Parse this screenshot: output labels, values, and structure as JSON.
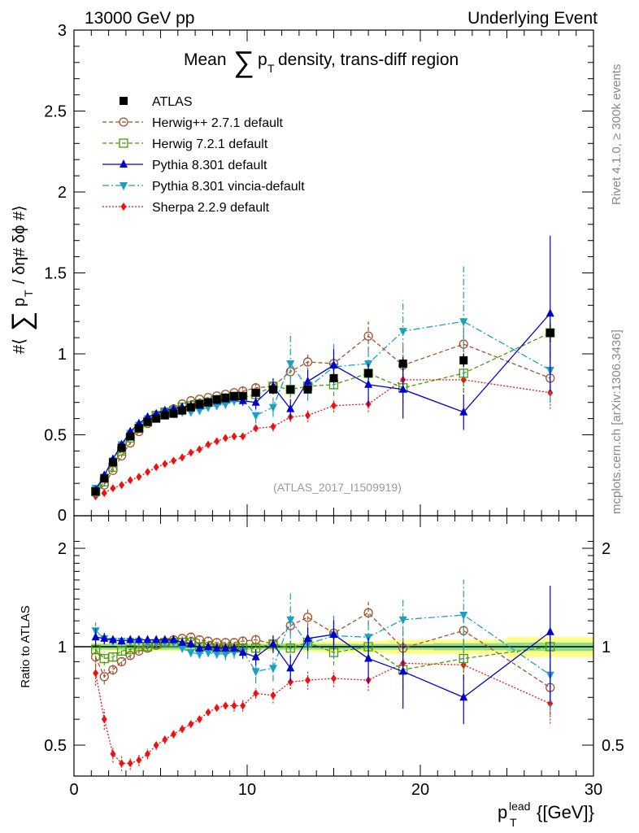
{
  "header": {
    "left": "13000 GeV pp",
    "right": "Underlying Event"
  },
  "side_labels": {
    "rivet": "Rivet 4.1.0, ≥ 300k events",
    "mcplots": "mcplots.cern.ch [arXiv:1306.3436]"
  },
  "chart_data": [
    {
      "type": "scatter",
      "title": "Mean ∑ p_T density, trans-diff region",
      "title_parts": {
        "pre": "Mean",
        "sigma": "∑",
        "p": "p",
        "sub": "T",
        "post": "density, trans-diff region"
      },
      "ylabel": "#⟨ ∑ p_T / δη# δϕ #⟩",
      "ylabel_parts": {
        "pre": "#⟨",
        "sigma": "∑",
        "p": "p",
        "sub": "T",
        "post": "/ δη# δϕ #⟩"
      },
      "xlabel": "p_T^lead {[GeV]}",
      "xlim": [
        0,
        30
      ],
      "ylim": [
        0,
        3
      ],
      "yticks": [
        "0.5",
        "1",
        "1.5",
        "2",
        "2.5",
        "3"
      ],
      "yticks_values": [
        0.5,
        1,
        1.5,
        2,
        2.5,
        3
      ],
      "ytick_zero": "0",
      "watermark": "(ATLAS_2017_I1509919)",
      "legend_position": "top-left",
      "x": [
        1.25,
        1.75,
        2.25,
        2.75,
        3.25,
        3.75,
        4.25,
        4.75,
        5.25,
        5.75,
        6.25,
        6.75,
        7.25,
        7.75,
        8.25,
        8.75,
        9.25,
        9.75,
        10.5,
        11.5,
        12.5,
        13.5,
        15.0,
        17.0,
        19.0,
        22.5,
        27.5
      ],
      "series": [
        {
          "name": "ATLAS",
          "color": "#000000",
          "marker": "square-filled",
          "line": "none",
          "values": [
            0.15,
            0.23,
            0.33,
            0.42,
            0.49,
            0.54,
            0.58,
            0.6,
            0.62,
            0.63,
            0.65,
            0.67,
            0.69,
            0.7,
            0.72,
            0.73,
            0.74,
            0.74,
            0.76,
            0.78,
            0.78,
            0.78,
            0.85,
            0.88,
            0.94,
            0.96,
            1.13
          ],
          "errors": [
            0.01,
            0.01,
            0.01,
            0.01,
            0.01,
            0.01,
            0.01,
            0.01,
            0.01,
            0.01,
            0.01,
            0.01,
            0.01,
            0.01,
            0.01,
            0.01,
            0.01,
            0.01,
            0.01,
            0.02,
            0.02,
            0.02,
            0.03,
            0.03,
            0.04,
            0.04,
            0.06
          ]
        },
        {
          "name": "Herwig++ 2.7.1 default",
          "color": "#a0522d",
          "marker": "circle-open",
          "line": "dashed",
          "values": [
            0.14,
            0.19,
            0.28,
            0.37,
            0.45,
            0.52,
            0.57,
            0.61,
            0.64,
            0.66,
            0.69,
            0.71,
            0.72,
            0.73,
            0.74,
            0.75,
            0.76,
            0.77,
            0.79,
            0.8,
            0.89,
            0.95,
            0.94,
            1.11,
            0.93,
            1.06,
            0.85
          ],
          "errors": [
            0.01,
            0.01,
            0.01,
            0.01,
            0.01,
            0.01,
            0.01,
            0.01,
            0.01,
            0.01,
            0.01,
            0.02,
            0.02,
            0.02,
            0.02,
            0.02,
            0.02,
            0.03,
            0.03,
            0.04,
            0.05,
            0.06,
            0.07,
            0.09,
            0.12,
            0.13,
            0.15
          ]
        },
        {
          "name": "Herwig 7.2.1 default",
          "color": "#4a9a0a",
          "marker": "square-open",
          "line": "dashed",
          "values": [
            0.15,
            0.21,
            0.3,
            0.4,
            0.48,
            0.54,
            0.58,
            0.62,
            0.64,
            0.65,
            0.67,
            0.68,
            0.69,
            0.7,
            0.71,
            0.72,
            0.73,
            0.73,
            0.75,
            0.8,
            0.78,
            0.8,
            0.81,
            0.88,
            0.79,
            0.88,
            1.13
          ],
          "errors": [
            0.01,
            0.01,
            0.01,
            0.01,
            0.01,
            0.01,
            0.01,
            0.01,
            0.01,
            0.01,
            0.01,
            0.02,
            0.02,
            0.02,
            0.02,
            0.02,
            0.02,
            0.03,
            0.03,
            0.04,
            0.05,
            0.06,
            0.07,
            0.08,
            0.1,
            0.12,
            0.14
          ]
        },
        {
          "name": "Pythia 8.301 default",
          "color": "#0000cc",
          "marker": "triangle-up",
          "line": "solid",
          "values": [
            0.16,
            0.25,
            0.35,
            0.44,
            0.52,
            0.57,
            0.61,
            0.63,
            0.65,
            0.66,
            0.67,
            0.68,
            0.68,
            0.7,
            0.71,
            0.72,
            0.73,
            0.71,
            0.7,
            0.8,
            0.66,
            0.83,
            0.93,
            0.81,
            0.78,
            0.64,
            1.25
          ],
          "errors": [
            0.01,
            0.01,
            0.01,
            0.01,
            0.01,
            0.01,
            0.01,
            0.01,
            0.01,
            0.01,
            0.01,
            0.02,
            0.02,
            0.02,
            0.02,
            0.02,
            0.02,
            0.03,
            0.04,
            0.05,
            0.06,
            0.07,
            0.1,
            0.13,
            0.18,
            0.11,
            0.48
          ]
        },
        {
          "name": "Pythia 8.301 vincia-default",
          "color": "#1aa0c0",
          "marker": "triangle-down",
          "line": "dashdot",
          "values": [
            0.17,
            0.24,
            0.34,
            0.44,
            0.51,
            0.56,
            0.6,
            0.62,
            0.64,
            0.65,
            0.64,
            0.64,
            0.65,
            0.67,
            0.68,
            0.69,
            0.71,
            0.72,
            0.62,
            0.67,
            0.94,
            0.79,
            0.92,
            0.94,
            1.14,
            1.2,
            0.9
          ],
          "errors": [
            0.01,
            0.01,
            0.01,
            0.01,
            0.01,
            0.01,
            0.01,
            0.01,
            0.01,
            0.02,
            0.02,
            0.02,
            0.02,
            0.02,
            0.02,
            0.03,
            0.03,
            0.04,
            0.05,
            0.06,
            0.19,
            0.08,
            0.14,
            0.12,
            0.19,
            0.34,
            0.2
          ]
        },
        {
          "name": "Sherpa 2.2.9 default",
          "color": "#ee1111",
          "marker": "diamond",
          "line": "dotted",
          "values": [
            0.12,
            0.14,
            0.17,
            0.19,
            0.22,
            0.24,
            0.27,
            0.3,
            0.32,
            0.34,
            0.36,
            0.39,
            0.41,
            0.44,
            0.46,
            0.48,
            0.49,
            0.49,
            0.54,
            0.55,
            0.61,
            0.62,
            0.68,
            0.69,
            0.84,
            0.84,
            0.76
          ],
          "errors": [
            0.01,
            0.01,
            0.01,
            0.01,
            0.01,
            0.01,
            0.01,
            0.01,
            0.01,
            0.01,
            0.01,
            0.01,
            0.01,
            0.01,
            0.01,
            0.01,
            0.02,
            0.02,
            0.02,
            0.03,
            0.03,
            0.04,
            0.04,
            0.05,
            0.07,
            0.08,
            0.1
          ]
        }
      ]
    },
    {
      "type": "scatter",
      "ylabel": "Ratio to ATLAS",
      "xlabel": "p_T^lead {[GeV]}",
      "xlim": [
        0,
        30
      ],
      "yscale": "log",
      "ylim": [
        0.38,
        2.3
      ],
      "yticks": [
        "0.5",
        "1",
        "2"
      ],
      "yticks_values": [
        0.5,
        1,
        2
      ],
      "xticks": [
        "0",
        "10",
        "20",
        "30"
      ],
      "xticks_values": [
        0,
        10,
        20,
        30
      ],
      "reference_band": {
        "name": "ATLAS uncertainty",
        "inner_color": "#8fdc8f",
        "outer_color": "#ffff88",
        "x": [
          1.25,
          1.75,
          2.25,
          2.75,
          3.25,
          3.75,
          4.25,
          4.75,
          5.25,
          5.75,
          6.25,
          6.75,
          7.25,
          7.75,
          8.25,
          8.75,
          9.25,
          9.75,
          10.5,
          11.5,
          12.5,
          13.5,
          15.0,
          17.0,
          19.0,
          22.5,
          27.5
        ],
        "inner": [
          0.02,
          0.02,
          0.02,
          0.02,
          0.02,
          0.02,
          0.02,
          0.02,
          0.02,
          0.02,
          0.02,
          0.02,
          0.02,
          0.02,
          0.02,
          0.02,
          0.02,
          0.02,
          0.02,
          0.02,
          0.02,
          0.02,
          0.02,
          0.02,
          0.02,
          0.025,
          0.03
        ],
        "outer": [
          0.03,
          0.03,
          0.03,
          0.03,
          0.03,
          0.03,
          0.03,
          0.03,
          0.03,
          0.03,
          0.03,
          0.03,
          0.03,
          0.03,
          0.03,
          0.03,
          0.03,
          0.03,
          0.03,
          0.03,
          0.03,
          0.035,
          0.04,
          0.04,
          0.05,
          0.05,
          0.07
        ]
      },
      "series": [
        {
          "name": "Herwig++ 2.7.1 default",
          "values": [
            0.93,
            0.81,
            0.85,
            0.9,
            0.94,
            0.97,
            0.99,
            1.01,
            1.03,
            1.05,
            1.06,
            1.07,
            1.05,
            1.04,
            1.03,
            1.03,
            1.03,
            1.04,
            1.05,
            1.02,
            1.16,
            1.23,
            1.1,
            1.27,
            0.99,
            1.12,
            0.75
          ]
        },
        {
          "name": "Herwig 7.2.1 default",
          "values": [
            0.98,
            0.92,
            0.93,
            0.97,
            0.98,
            1.0,
            1.0,
            1.02,
            1.03,
            1.03,
            1.03,
            1.03,
            1.0,
            1.0,
            0.99,
            0.99,
            0.99,
            0.99,
            0.99,
            1.02,
            0.99,
            1.03,
            0.96,
            1.0,
            0.85,
            0.92,
            1.0
          ]
        },
        {
          "name": "Pythia 8.301 default",
          "values": [
            1.07,
            1.06,
            1.05,
            1.04,
            1.05,
            1.05,
            1.05,
            1.05,
            1.05,
            1.05,
            1.03,
            1.02,
            0.99,
            1.0,
            0.99,
            0.99,
            0.99,
            0.96,
            0.93,
            1.02,
            0.86,
            1.06,
            1.09,
            0.92,
            0.84,
            0.7,
            1.11
          ]
        },
        {
          "name": "Pythia 8.301 vincia-default",
          "values": [
            1.12,
            1.06,
            1.04,
            1.04,
            1.04,
            1.04,
            1.03,
            1.03,
            1.03,
            1.03,
            0.99,
            0.96,
            0.95,
            0.96,
            0.95,
            0.95,
            0.96,
            0.97,
            0.84,
            0.86,
            1.21,
            1.02,
            1.08,
            1.07,
            1.21,
            1.25,
            0.82
          ]
        },
        {
          "name": "Sherpa 2.2.9 default",
          "values": [
            0.83,
            0.6,
            0.47,
            0.44,
            0.44,
            0.45,
            0.47,
            0.5,
            0.52,
            0.54,
            0.56,
            0.58,
            0.6,
            0.63,
            0.65,
            0.66,
            0.66,
            0.66,
            0.72,
            0.71,
            0.78,
            0.79,
            0.8,
            0.79,
            0.89,
            0.88,
            0.67
          ]
        }
      ]
    }
  ]
}
